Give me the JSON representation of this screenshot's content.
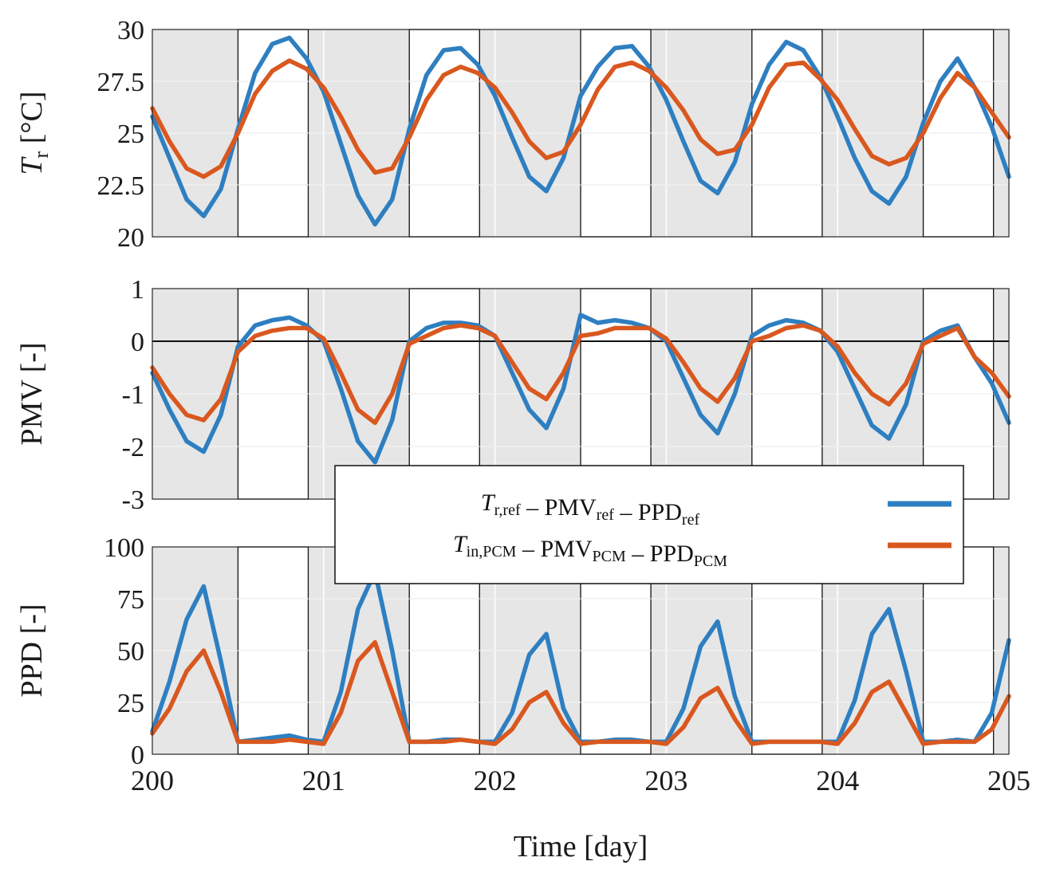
{
  "colors": {
    "ref": "#2e7fc1",
    "pcm": "#d9581f",
    "night_band": "#e6e6e6"
  },
  "chart_data": [
    {
      "type": "line",
      "ylabel_main": "T",
      "ylabel_sub": "r",
      "ylabel_unit": " [°C]",
      "xlim": [
        200,
        205
      ],
      "ylim": [
        20,
        30
      ],
      "yticks": [
        "20",
        "22.5",
        "25",
        "27.5",
        "30"
      ],
      "ytick_values": [
        20,
        22.5,
        25,
        27.5,
        30
      ],
      "series": [
        {
          "key": "ref",
          "x": [
            200,
            200.1,
            200.2,
            200.3,
            200.4,
            200.5,
            200.6,
            200.7,
            200.8,
            200.9,
            201,
            201.1,
            201.2,
            201.3,
            201.4,
            201.5,
            201.6,
            201.7,
            201.8,
            201.9,
            202,
            202.1,
            202.2,
            202.3,
            202.4,
            202.5,
            202.6,
            202.7,
            202.8,
            202.9,
            203,
            203.1,
            203.2,
            203.3,
            203.4,
            203.5,
            203.6,
            203.7,
            203.8,
            203.9,
            204,
            204.1,
            204.2,
            204.3,
            204.4,
            204.5,
            204.6,
            204.7,
            204.8,
            204.9,
            205
          ],
          "values": [
            25.8,
            23.8,
            21.8,
            21.0,
            22.3,
            25.2,
            27.9,
            29.3,
            29.6,
            28.6,
            27.0,
            24.5,
            22.0,
            20.6,
            21.8,
            25.2,
            27.8,
            29.0,
            29.1,
            28.3,
            26.8,
            24.8,
            22.9,
            22.2,
            23.8,
            26.8,
            28.2,
            29.1,
            29.2,
            28.2,
            26.6,
            24.6,
            22.7,
            22.1,
            23.6,
            26.4,
            28.3,
            29.4,
            29.0,
            27.7,
            25.8,
            23.8,
            22.2,
            21.6,
            22.9,
            25.5,
            27.5,
            28.6,
            27.2,
            25.3,
            22.9
          ]
        },
        {
          "key": "pcm",
          "x": [
            200,
            200.1,
            200.2,
            200.3,
            200.4,
            200.5,
            200.6,
            200.7,
            200.8,
            200.9,
            201,
            201.1,
            201.2,
            201.3,
            201.4,
            201.5,
            201.6,
            201.7,
            201.8,
            201.9,
            202,
            202.1,
            202.2,
            202.3,
            202.4,
            202.5,
            202.6,
            202.7,
            202.8,
            202.9,
            203,
            203.1,
            203.2,
            203.3,
            203.4,
            203.5,
            203.6,
            203.7,
            203.8,
            203.9,
            204,
            204.1,
            204.2,
            204.3,
            204.4,
            204.5,
            204.6,
            204.7,
            204.8,
            204.9,
            205
          ],
          "values": [
            26.2,
            24.6,
            23.3,
            22.9,
            23.4,
            25.0,
            26.9,
            28.0,
            28.5,
            28.1,
            27.2,
            25.8,
            24.2,
            23.1,
            23.3,
            24.8,
            26.6,
            27.8,
            28.2,
            27.9,
            27.2,
            26.0,
            24.6,
            23.8,
            24.1,
            25.4,
            27.1,
            28.2,
            28.4,
            28.0,
            27.2,
            26.1,
            24.7,
            24.0,
            24.2,
            25.4,
            27.2,
            28.3,
            28.4,
            27.6,
            26.6,
            25.2,
            23.9,
            23.5,
            23.8,
            25.0,
            26.7,
            27.9,
            27.2,
            26.0,
            24.8
          ]
        }
      ]
    },
    {
      "type": "line",
      "ylabel": "PMV [-]",
      "xlim": [
        200,
        205
      ],
      "ylim": [
        -3,
        1
      ],
      "yticks": [
        "-3",
        "-2",
        "-1",
        "0",
        "1"
      ],
      "ytick_values": [
        -3,
        -2,
        -1,
        0,
        1
      ],
      "series": [
        {
          "key": "ref",
          "x": [
            200,
            200.1,
            200.2,
            200.3,
            200.4,
            200.5,
            200.6,
            200.7,
            200.8,
            200.9,
            201,
            201.1,
            201.2,
            201.3,
            201.4,
            201.5,
            201.6,
            201.7,
            201.8,
            201.9,
            202,
            202.1,
            202.2,
            202.3,
            202.4,
            202.5,
            202.6,
            202.7,
            202.8,
            202.9,
            203,
            203.1,
            203.2,
            203.3,
            203.4,
            203.5,
            203.6,
            203.7,
            203.8,
            203.9,
            204,
            204.1,
            204.2,
            204.3,
            204.4,
            204.5,
            204.6,
            204.7,
            204.8,
            204.9,
            205
          ],
          "values": [
            -0.6,
            -1.3,
            -1.9,
            -2.1,
            -1.4,
            -0.1,
            0.3,
            0.4,
            0.45,
            0.3,
            0.0,
            -0.9,
            -1.9,
            -2.3,
            -1.5,
            0.0,
            0.25,
            0.35,
            0.35,
            0.3,
            0.1,
            -0.6,
            -1.3,
            -1.65,
            -0.9,
            0.5,
            0.35,
            0.4,
            0.35,
            0.25,
            0.0,
            -0.7,
            -1.4,
            -1.75,
            -1.0,
            0.1,
            0.3,
            0.4,
            0.35,
            0.2,
            -0.2,
            -0.9,
            -1.6,
            -1.85,
            -1.2,
            0.0,
            0.2,
            0.3,
            -0.3,
            -0.8,
            -1.55
          ]
        },
        {
          "key": "pcm",
          "x": [
            200,
            200.1,
            200.2,
            200.3,
            200.4,
            200.5,
            200.6,
            200.7,
            200.8,
            200.9,
            201,
            201.1,
            201.2,
            201.3,
            201.4,
            201.5,
            201.6,
            201.7,
            201.8,
            201.9,
            202,
            202.1,
            202.2,
            202.3,
            202.4,
            202.5,
            202.6,
            202.7,
            202.8,
            202.9,
            203,
            203.1,
            203.2,
            203.3,
            203.4,
            203.5,
            203.6,
            203.7,
            203.8,
            203.9,
            204,
            204.1,
            204.2,
            204.3,
            204.4,
            204.5,
            204.6,
            204.7,
            204.8,
            204.9,
            205
          ],
          "values": [
            -0.5,
            -1.0,
            -1.4,
            -1.5,
            -1.1,
            -0.2,
            0.1,
            0.2,
            0.25,
            0.25,
            0.05,
            -0.6,
            -1.3,
            -1.55,
            -1.0,
            -0.05,
            0.1,
            0.25,
            0.3,
            0.25,
            0.1,
            -0.4,
            -0.9,
            -1.1,
            -0.6,
            0.1,
            0.15,
            0.25,
            0.25,
            0.25,
            0.05,
            -0.4,
            -0.9,
            -1.15,
            -0.7,
            0.0,
            0.1,
            0.25,
            0.3,
            0.2,
            -0.1,
            -0.6,
            -1.0,
            -1.2,
            -0.8,
            -0.05,
            0.1,
            0.25,
            -0.3,
            -0.6,
            -1.05
          ]
        }
      ]
    },
    {
      "type": "line",
      "ylabel": "PPD [-]",
      "xlabel": "Time [day]",
      "xlim": [
        200,
        205
      ],
      "ylim": [
        0,
        100
      ],
      "xticks": [
        "200",
        "201",
        "202",
        "203",
        "204",
        "205"
      ],
      "xtick_values": [
        200,
        201,
        202,
        203,
        204,
        205
      ],
      "yticks": [
        "0",
        "25",
        "50",
        "75",
        "100"
      ],
      "ytick_values": [
        0,
        25,
        50,
        75,
        100
      ],
      "series": [
        {
          "key": "ref",
          "x": [
            200,
            200.1,
            200.2,
            200.3,
            200.4,
            200.5,
            200.6,
            200.7,
            200.8,
            200.9,
            201,
            201.1,
            201.2,
            201.3,
            201.4,
            201.5,
            201.6,
            201.7,
            201.8,
            201.9,
            202,
            202.1,
            202.2,
            202.3,
            202.4,
            202.5,
            202.6,
            202.7,
            202.8,
            202.9,
            203,
            203.1,
            203.2,
            203.3,
            203.4,
            203.5,
            203.6,
            203.7,
            203.8,
            203.9,
            204,
            204.1,
            204.2,
            204.3,
            204.4,
            204.5,
            204.6,
            204.7,
            204.8,
            204.9,
            205
          ],
          "values": [
            11,
            35,
            65,
            81,
            45,
            6,
            7,
            8,
            9,
            7,
            6,
            30,
            70,
            88,
            50,
            6,
            6,
            7,
            7,
            6,
            6,
            20,
            48,
            58,
            22,
            6,
            6,
            7,
            7,
            6,
            6,
            22,
            52,
            64,
            28,
            6,
            6,
            6,
            6,
            6,
            6,
            26,
            58,
            70,
            40,
            6,
            6,
            7,
            6,
            20,
            55
          ]
        },
        {
          "key": "pcm",
          "x": [
            200,
            200.1,
            200.2,
            200.3,
            200.4,
            200.5,
            200.6,
            200.7,
            200.8,
            200.9,
            201,
            201.1,
            201.2,
            201.3,
            201.4,
            201.5,
            201.6,
            201.7,
            201.8,
            201.9,
            202,
            202.1,
            202.2,
            202.3,
            202.4,
            202.5,
            202.6,
            202.7,
            202.8,
            202.9,
            203,
            203.1,
            203.2,
            203.3,
            203.4,
            203.5,
            203.6,
            203.7,
            203.8,
            203.9,
            204,
            204.1,
            204.2,
            204.3,
            204.4,
            204.5,
            204.6,
            204.7,
            204.8,
            204.9,
            205
          ],
          "values": [
            10,
            22,
            40,
            50,
            30,
            6,
            6,
            6,
            7,
            6,
            5,
            20,
            45,
            54,
            30,
            6,
            6,
            6,
            7,
            6,
            5,
            12,
            25,
            30,
            15,
            5,
            6,
            6,
            6,
            6,
            5,
            13,
            27,
            32,
            17,
            5,
            6,
            6,
            6,
            6,
            5,
            15,
            30,
            35,
            20,
            5,
            6,
            6,
            6,
            12,
            28
          ]
        }
      ]
    }
  ],
  "day_periods": [
    [
      200.5,
      200.91
    ],
    [
      201.5,
      201.91
    ],
    [
      202.5,
      202.91
    ],
    [
      203.5,
      203.91
    ],
    [
      204.5,
      204.91
    ]
  ],
  "legend": {
    "entries": [
      {
        "key": "ref",
        "parts": [
          [
            "T",
            "i"
          ],
          [
            "r,ref",
            "sub"
          ],
          [
            " – PMV",
            "n"
          ],
          [
            "ref",
            "sub"
          ],
          [
            " – PPD",
            "n"
          ],
          [
            "ref",
            "sub"
          ]
        ]
      },
      {
        "key": "pcm",
        "parts": [
          [
            "T",
            "i"
          ],
          [
            "in,PCM",
            "sub"
          ],
          [
            " – PMV",
            "n"
          ],
          [
            "PCM",
            "sub"
          ],
          [
            " – PPD",
            "n"
          ],
          [
            "PCM",
            "sub"
          ]
        ]
      }
    ]
  }
}
